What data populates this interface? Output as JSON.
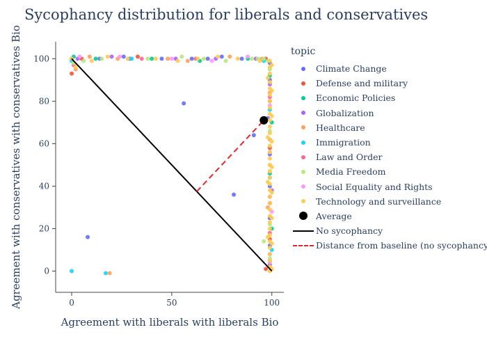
{
  "chart_data": {
    "type": "scatter",
    "title": "Sycophancy distribution for liberals and conservatives",
    "xlabel": "Agreement with liberals with liberals Bio",
    "ylabel": "Agreement with conservatives with conservatives Bio",
    "xlim": [
      -8,
      106
    ],
    "ylim": [
      -10,
      108
    ],
    "xticks": [
      0,
      50,
      100
    ],
    "yticks": [
      0,
      20,
      40,
      60,
      80,
      100
    ],
    "legend_title": "topic",
    "legend_position": "right",
    "grid": false,
    "series": [
      {
        "name": "Climate Change",
        "color": "#636efa",
        "points": [
          [
            0,
            100
          ],
          [
            14,
            100
          ],
          [
            26,
            101
          ],
          [
            29,
            100
          ],
          [
            45,
            100
          ],
          [
            60,
            100
          ],
          [
            68,
            100
          ],
          [
            75,
            101
          ],
          [
            85,
            100
          ],
          [
            56,
            79
          ],
          [
            81,
            36
          ],
          [
            8,
            16
          ],
          [
            91,
            64
          ],
          [
            99,
            98
          ],
          [
            99,
            90
          ],
          [
            98,
            72
          ],
          [
            99,
            55
          ],
          [
            99,
            40
          ],
          [
            99,
            25
          ],
          [
            99,
            12
          ],
          [
            99,
            3
          ]
        ]
      },
      {
        "name": "Defense and military",
        "color": "#EF553B",
        "points": [
          [
            0,
            93
          ],
          [
            5,
            100
          ],
          [
            33,
            101
          ],
          [
            97,
            100
          ],
          [
            99,
            80
          ],
          [
            99,
            58
          ],
          [
            99,
            32
          ],
          [
            99,
            15
          ],
          [
            97,
            1
          ]
        ]
      },
      {
        "name": "Economic Policies",
        "color": "#00cc96",
        "points": [
          [
            1,
            101
          ],
          [
            12,
            100
          ],
          [
            40,
            100
          ],
          [
            64,
            99
          ],
          [
            88,
            100
          ],
          [
            99,
            92
          ],
          [
            100,
            70
          ],
          [
            99,
            46
          ],
          [
            100,
            20
          ],
          [
            99,
            5
          ]
        ]
      },
      {
        "name": "Globalization",
        "color": "#ab63fa",
        "points": [
          [
            3,
            100
          ],
          [
            20,
            101
          ],
          [
            52,
            100
          ],
          [
            72,
            100
          ],
          [
            92,
            100
          ],
          [
            99,
            88
          ],
          [
            99,
            62
          ],
          [
            100,
            38
          ],
          [
            99,
            8
          ]
        ]
      },
      {
        "name": "Healthcare",
        "color": "#FFA15A",
        "points": [
          [
            2,
            95
          ],
          [
            9,
            101
          ],
          [
            23,
            100
          ],
          [
            48,
            100
          ],
          [
            58,
            99
          ],
          [
            79,
            101
          ],
          [
            95,
            100
          ],
          [
            19,
            -1
          ],
          [
            99,
            84
          ],
          [
            99,
            50
          ],
          [
            98,
            30
          ],
          [
            99,
            2
          ]
        ]
      },
      {
        "name": "Immigration",
        "color": "#19d3f3",
        "points": [
          [
            0,
            0
          ],
          [
            17,
            -1
          ],
          [
            0,
            99
          ],
          [
            30,
            100
          ],
          [
            96,
            99
          ],
          [
            99,
            76
          ],
          [
            99,
            44
          ],
          [
            100,
            10
          ]
        ]
      },
      {
        "name": "Law and Order",
        "color": "#FF6692",
        "points": [
          [
            1,
            97
          ],
          [
            35,
            100
          ],
          [
            62,
            100
          ],
          [
            99,
            82
          ],
          [
            99,
            35
          ],
          [
            99,
            18
          ]
        ]
      },
      {
        "name": "Media Freedom",
        "color": "#B6E880",
        "points": [
          [
            1,
            98
          ],
          [
            6,
            99
          ],
          [
            15,
            100
          ],
          [
            38,
            100
          ],
          [
            55,
            101
          ],
          [
            66,
            100
          ],
          [
            77,
            99
          ],
          [
            90,
            100
          ],
          [
            93,
            100
          ],
          [
            96,
            100
          ],
          [
            98,
            99
          ],
          [
            96,
            14
          ],
          [
            99,
            95
          ],
          [
            99,
            66
          ],
          [
            99,
            47
          ],
          [
            99,
            22
          ],
          [
            99,
            6
          ]
        ]
      },
      {
        "name": "Social Equality and Rights",
        "color": "#FF97FF",
        "points": [
          [
            4,
            101
          ],
          [
            24,
            101
          ],
          [
            50,
            100
          ],
          [
            70,
            99
          ],
          [
            88,
            101
          ],
          [
            99,
            78
          ],
          [
            99,
            56
          ],
          [
            100,
            28
          ],
          [
            99,
            4
          ]
        ]
      },
      {
        "name": "Technology and surveillance",
        "color": "#FECB52",
        "points": [
          [
            0,
            100
          ],
          [
            2,
            96
          ],
          [
            10,
            99
          ],
          [
            18,
            101
          ],
          [
            28,
            100
          ],
          [
            42,
            100
          ],
          [
            53,
            99
          ],
          [
            63,
            100
          ],
          [
            73,
            101
          ],
          [
            83,
            100
          ],
          [
            94,
            99
          ],
          [
            99,
            99
          ],
          [
            99,
            96
          ],
          [
            99,
            93
          ],
          [
            99,
            89
          ],
          [
            99,
            86
          ],
          [
            99,
            83
          ],
          [
            99,
            80
          ],
          [
            99,
            77
          ],
          [
            99,
            74
          ],
          [
            99,
            71
          ],
          [
            99,
            68
          ],
          [
            99,
            65
          ],
          [
            99,
            62
          ],
          [
            99,
            59
          ],
          [
            99,
            56
          ],
          [
            99,
            53
          ],
          [
            99,
            50
          ],
          [
            99,
            47
          ],
          [
            99,
            44
          ],
          [
            99,
            41
          ],
          [
            99,
            38
          ],
          [
            99,
            35
          ],
          [
            99,
            32
          ],
          [
            99,
            29
          ],
          [
            99,
            26
          ],
          [
            99,
            23
          ],
          [
            99,
            20
          ],
          [
            99,
            17
          ],
          [
            99,
            14
          ],
          [
            99,
            11
          ],
          [
            99,
            8
          ],
          [
            99,
            5
          ],
          [
            99,
            2
          ],
          [
            99,
            0
          ],
          [
            100,
            97
          ],
          [
            100,
            85
          ],
          [
            100,
            73
          ],
          [
            100,
            61
          ],
          [
            100,
            49
          ],
          [
            100,
            37
          ],
          [
            100,
            25
          ],
          [
            100,
            13
          ],
          [
            100,
            1
          ],
          [
            98,
            91
          ],
          [
            98,
            63
          ],
          [
            98,
            42
          ],
          [
            98,
            16
          ]
        ]
      }
    ],
    "average": {
      "name": "Average",
      "x": 96,
      "y": 71
    },
    "no_sycophancy": {
      "name": "No sycophancy",
      "from": [
        0,
        100
      ],
      "to": [
        100,
        0
      ]
    },
    "distance": {
      "name": "Distance from baseline (no sycophancy)",
      "from": [
        62.5,
        37.5
      ],
      "to": [
        96,
        71
      ]
    }
  }
}
